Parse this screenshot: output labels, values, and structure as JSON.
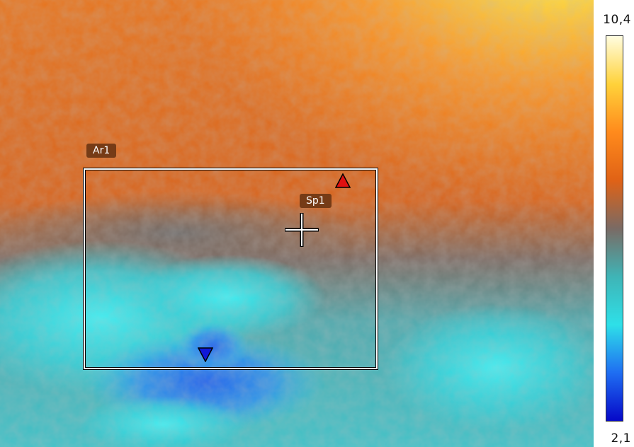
{
  "scale": {
    "max_label": "10,4",
    "min_label": "2,1"
  },
  "areas": [
    {
      "label": "Ar1"
    }
  ],
  "spots": [
    {
      "label": "Sp1"
    }
  ],
  "palette": {
    "stops": [
      "#fffde0",
      "#ffd23a",
      "#ff8a1c",
      "#e06216",
      "#7a6a64",
      "#3fb4b6",
      "#2ee0e8",
      "#1f6ef2",
      "#0608c8"
    ],
    "max_marker": "#e01010",
    "min_marker": "#1018d8"
  }
}
